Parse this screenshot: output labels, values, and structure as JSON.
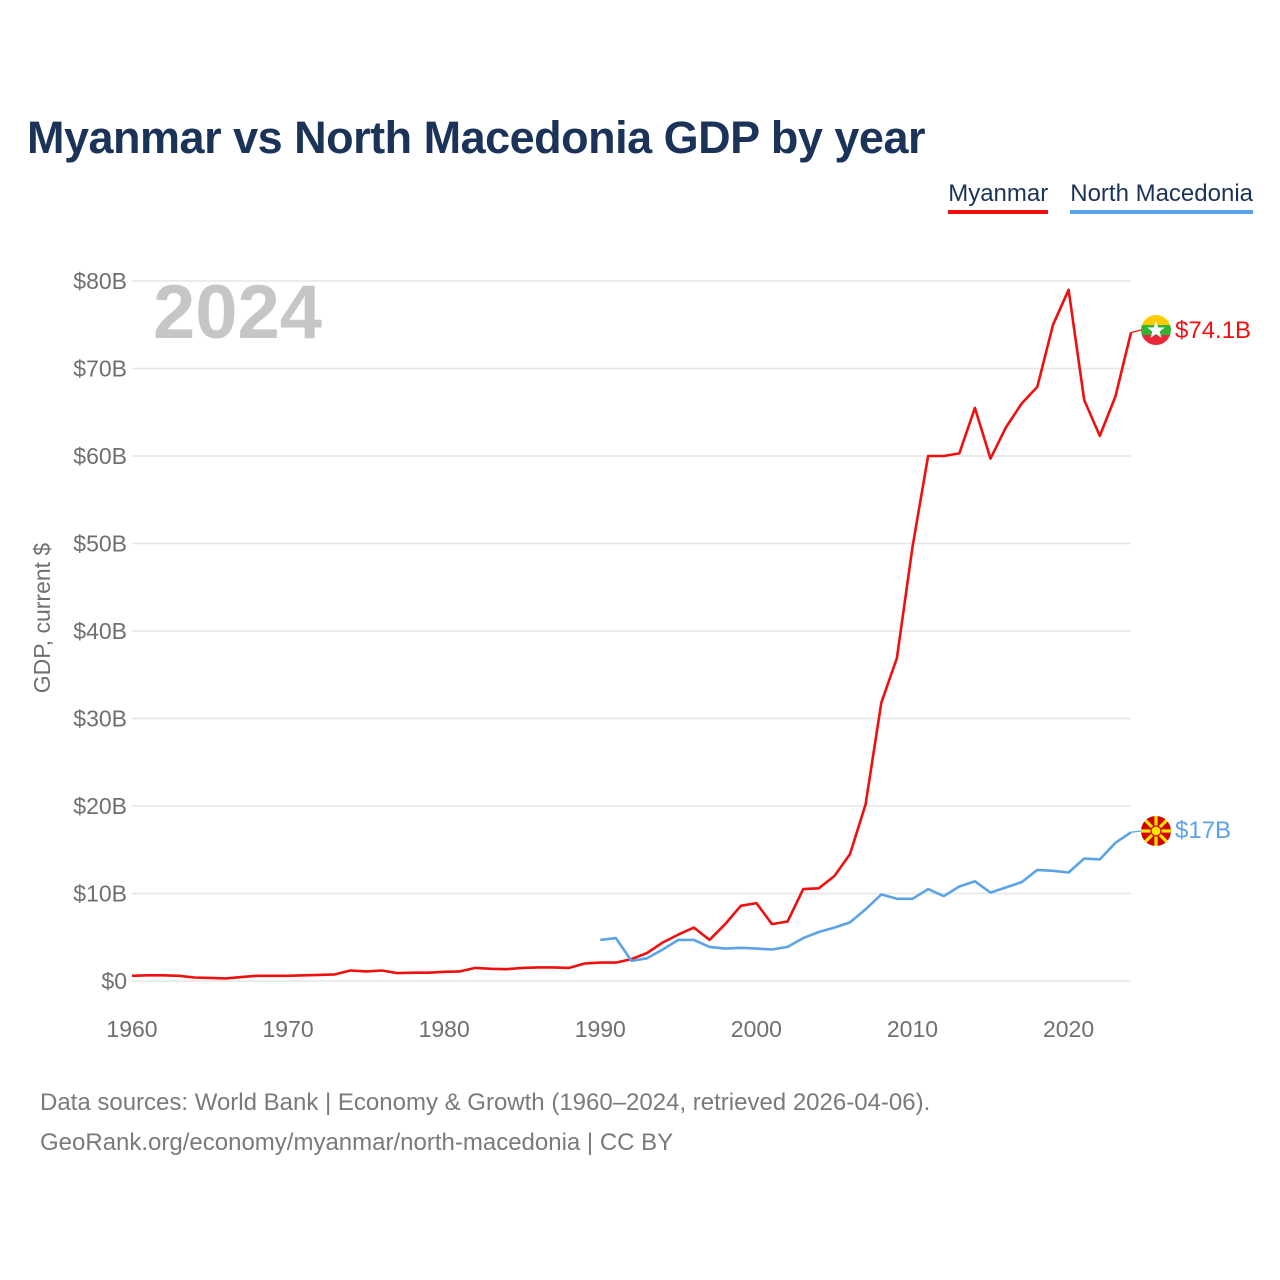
{
  "title": "Myanmar vs North Macedonia GDP by year",
  "legend": [
    {
      "label": "Myanmar",
      "color": "#f00f0f"
    },
    {
      "label": "North Macedonia",
      "color": "#5ba3e6"
    }
  ],
  "year_watermark": "2024",
  "footer": {
    "line1": "Data sources: World Bank | Economy & Growth (1960–2024, retrieved 2026-04-06).",
    "line2": "GeoRank.org/economy/myanmar/north-macedonia | CC BY"
  },
  "chart_data": {
    "type": "line",
    "title": "Myanmar vs North Macedonia GDP by year",
    "xlabel": "",
    "ylabel": "GDP, current $",
    "xlim": [
      1960,
      2024
    ],
    "ylim": [
      0,
      80
    ],
    "x_ticks": [
      1960,
      1970,
      1980,
      1990,
      2000,
      2010,
      2020
    ],
    "x_tick_labels": [
      "1960",
      "1970",
      "1980",
      "1990",
      "2000",
      "2010",
      "2020"
    ],
    "y_ticks": [
      0,
      10,
      20,
      30,
      40,
      50,
      60,
      70,
      80
    ],
    "y_tick_labels": [
      "$0",
      "$10B",
      "$20B",
      "$30B",
      "$40B",
      "$50B",
      "$60B",
      "$70B",
      "$80B"
    ],
    "grid": true,
    "legend_position": "top-right",
    "series": [
      {
        "name": "Myanmar",
        "color": "#f00f0f",
        "end_label": "$74.1B",
        "flag": "myanmar-flag",
        "x": [
          1960,
          1961,
          1962,
          1963,
          1964,
          1965,
          1966,
          1967,
          1968,
          1969,
          1970,
          1971,
          1972,
          1973,
          1974,
          1975,
          1976,
          1977,
          1978,
          1979,
          1980,
          1981,
          1982,
          1983,
          1984,
          1985,
          1986,
          1987,
          1988,
          1989,
          1990,
          1991,
          1992,
          1993,
          1994,
          1995,
          1996,
          1997,
          1998,
          1999,
          2000,
          2001,
          2002,
          2003,
          2004,
          2005,
          2006,
          2007,
          2008,
          2009,
          2010,
          2011,
          2012,
          2013,
          2014,
          2015,
          2016,
          2017,
          2018,
          2019,
          2020,
          2021,
          2022,
          2023,
          2024
        ],
        "values": [
          0.6,
          0.65,
          0.65,
          0.6,
          0.4,
          0.35,
          0.3,
          0.45,
          0.6,
          0.6,
          0.6,
          0.65,
          0.7,
          0.75,
          1.2,
          1.1,
          1.2,
          0.9,
          0.95,
          0.95,
          1.05,
          1.1,
          1.5,
          1.4,
          1.35,
          1.5,
          1.55,
          1.55,
          1.5,
          2.0,
          2.1,
          2.1,
          2.5,
          3.2,
          4.4,
          5.3,
          6.1,
          4.7,
          6.5,
          8.6,
          8.9,
          6.5,
          6.8,
          10.5,
          10.6,
          12.0,
          14.5,
          20.2,
          31.8,
          36.9,
          49.6,
          60.0,
          60.0,
          60.3,
          65.5,
          59.7,
          63.3,
          66.0,
          67.9,
          75.0,
          79.0,
          66.4,
          62.3,
          66.8,
          74.1
        ]
      },
      {
        "name": "North Macedonia",
        "color": "#5ba3e6",
        "end_label": "$17B",
        "flag": "north-macedonia-flag",
        "x": [
          1990,
          1991,
          1992,
          1993,
          1994,
          1995,
          1996,
          1997,
          1998,
          1999,
          2000,
          2001,
          2002,
          2003,
          2004,
          2005,
          2006,
          2007,
          2008,
          2009,
          2010,
          2011,
          2012,
          2013,
          2014,
          2015,
          2016,
          2017,
          2018,
          2019,
          2020,
          2021,
          2022,
          2023,
          2024
        ],
        "values": [
          4.7,
          4.9,
          2.3,
          2.6,
          3.6,
          4.7,
          4.7,
          3.9,
          3.7,
          3.8,
          3.7,
          3.6,
          3.9,
          4.9,
          5.6,
          6.1,
          6.7,
          8.2,
          9.9,
          9.4,
          9.4,
          10.5,
          9.7,
          10.8,
          11.4,
          10.1,
          10.7,
          11.3,
          12.7,
          12.6,
          12.4,
          14.0,
          13.9,
          15.8,
          17.0
        ]
      }
    ]
  }
}
